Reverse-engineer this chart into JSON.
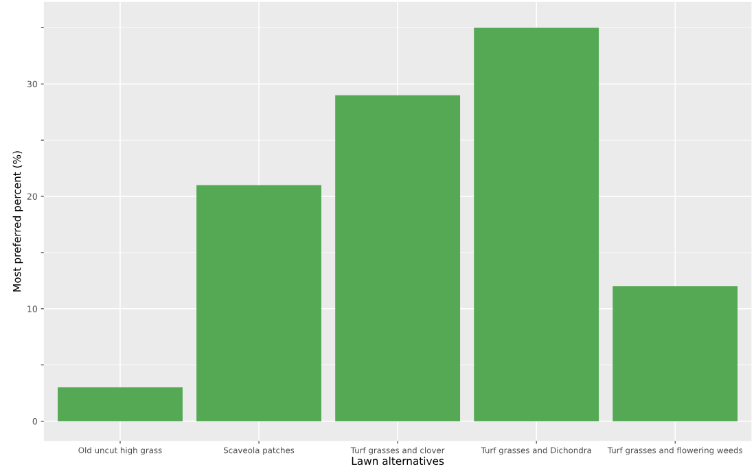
{
  "chart_data": {
    "type": "bar",
    "xlabel": "Lawn alternatives",
    "ylabel": "Most preferred percent (%)",
    "categories": [
      "Old uncut high grass",
      "Scaveola patches",
      "Turf grasses and clover",
      "Turf grasses and Dichondra",
      "Turf grasses and flowering weeds"
    ],
    "values": [
      3,
      21,
      29,
      35,
      12
    ],
    "color": "#55a955",
    "ylim": [
      -1.75,
      37.3
    ],
    "yticks": [
      0,
      {
        "value": 5,
        "label": null
      },
      10,
      {
        "value": 15,
        "label": null
      },
      20,
      {
        "value": 25,
        "label": null
      },
      30,
      {
        "value": 35,
        "label": null
      }
    ],
    "grid": true
  }
}
